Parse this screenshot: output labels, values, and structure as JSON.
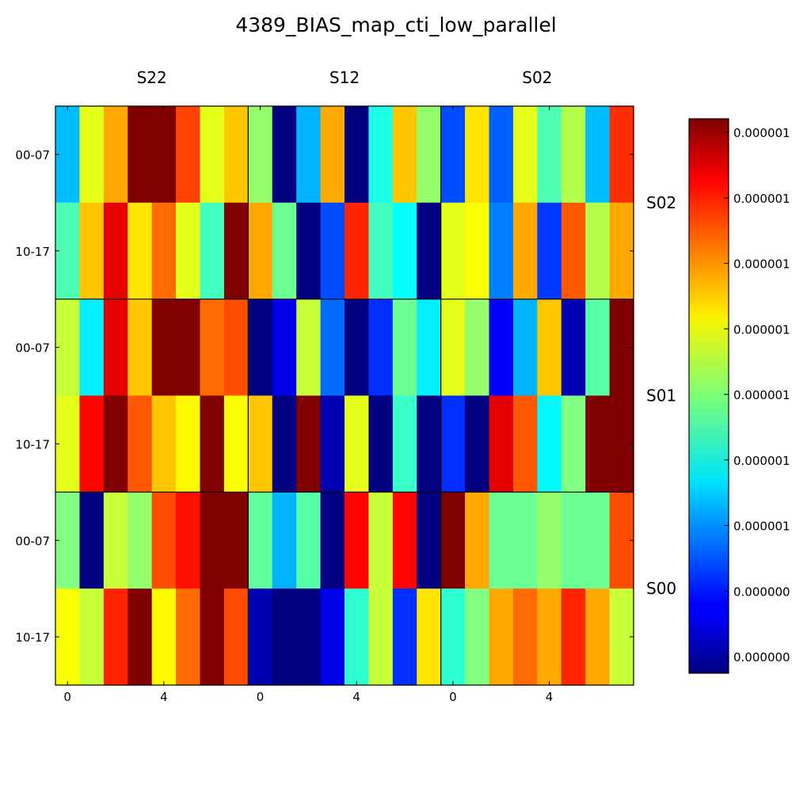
{
  "title": "4389_BIAS_map_cti_low_parallel",
  "chart_data": {
    "type": "heatmap",
    "title": "4389_BIAS_map_cti_low_parallel",
    "colormap": "jet",
    "column_groups": [
      "S22",
      "S12",
      "S02"
    ],
    "row_groups": [
      "S02",
      "S01",
      "S00"
    ],
    "row_labels": [
      "00-07",
      "10-17"
    ],
    "x_ticks": [
      "0",
      "4"
    ],
    "colorbar_ticks": [
      "0.000000",
      "0.000000",
      "0.000001",
      "0.000001",
      "0.000001",
      "0.000001",
      "0.000001",
      "0.000001",
      "0.000001"
    ],
    "value_range": [
      0,
      1
    ],
    "grid": [
      [
        0.31,
        0.6,
        0.71,
        1.0,
        1.0,
        0.81,
        0.6,
        0.68,
        0.52,
        0.0,
        0.3,
        0.71,
        0.0,
        0.4,
        0.68,
        0.52,
        0.2,
        0.65,
        0.22,
        0.6,
        0.45,
        0.55,
        0.31,
        0.83
      ],
      [
        0.45,
        0.68,
        0.9,
        0.65,
        0.77,
        0.6,
        0.44,
        1.0,
        0.71,
        0.48,
        0.0,
        0.2,
        0.84,
        0.44,
        0.38,
        0.0,
        0.6,
        0.62,
        0.25,
        0.71,
        0.18,
        0.79,
        0.55,
        0.71
      ],
      [
        0.57,
        0.36,
        0.9,
        0.68,
        1.0,
        1.0,
        0.77,
        0.8,
        0.0,
        0.1,
        0.57,
        0.23,
        0.0,
        0.17,
        0.48,
        0.36,
        0.6,
        0.52,
        0.12,
        0.3,
        0.68,
        0.05,
        0.46,
        1.0
      ],
      [
        0.6,
        0.87,
        1.0,
        0.79,
        0.68,
        0.63,
        1.0,
        0.62,
        0.68,
        0.0,
        1.0,
        0.05,
        0.6,
        0.0,
        0.43,
        0.0,
        0.17,
        0.0,
        0.9,
        0.79,
        0.37,
        0.5,
        1.0,
        1.0
      ],
      [
        0.5,
        0.0,
        0.57,
        0.52,
        0.8,
        0.86,
        1.0,
        1.0,
        0.47,
        0.3,
        0.46,
        0.0,
        0.87,
        0.57,
        0.87,
        0.0,
        1.0,
        0.71,
        0.48,
        0.48,
        0.52,
        0.48,
        0.48,
        0.8
      ],
      [
        0.62,
        0.57,
        0.84,
        1.0,
        0.63,
        0.77,
        1.0,
        0.8,
        0.05,
        0.0,
        0.0,
        0.1,
        0.42,
        0.57,
        0.17,
        0.65,
        0.42,
        0.5,
        0.71,
        0.77,
        0.71,
        0.84,
        0.71,
        0.57
      ]
    ]
  }
}
